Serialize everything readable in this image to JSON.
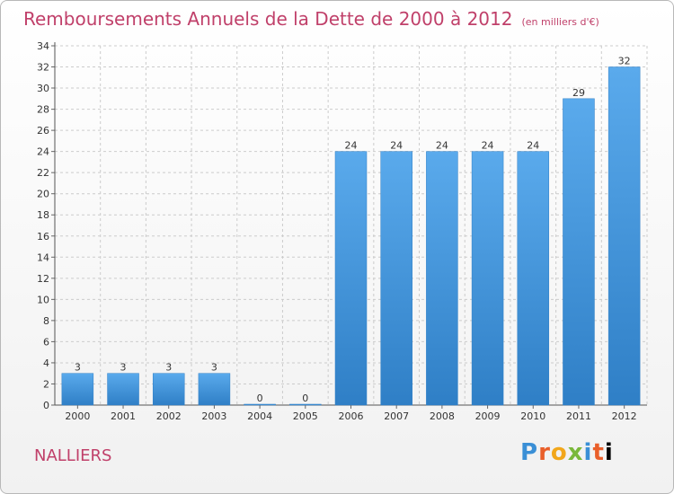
{
  "header": {
    "title": "Remboursements Annuels de la Dette de 2000 à 2012",
    "unit": "(en milliers d'€)"
  },
  "footer": {
    "commune": "NALLIERS",
    "logo_letters": [
      "P",
      "r",
      "o",
      "x",
      "i",
      "t",
      "i"
    ]
  },
  "colors": {
    "bar": "#3b8fd8",
    "bar_light": "#5aaaec",
    "title": "#c0406a",
    "grid": "#cccccc"
  },
  "chart_data": {
    "type": "bar",
    "title": "Remboursements Annuels de la Dette de 2000 à 2012",
    "subtitle": "(en milliers d'€)",
    "categories": [
      "2000",
      "2001",
      "2002",
      "2003",
      "2004",
      "2005",
      "2006",
      "2007",
      "2008",
      "2009",
      "2010",
      "2011",
      "2012"
    ],
    "values": [
      3,
      3,
      3,
      3,
      0,
      0,
      24,
      24,
      24,
      24,
      24,
      29,
      32
    ],
    "ylim": [
      0,
      34
    ],
    "yticks": [
      0,
      2,
      4,
      6,
      8,
      10,
      12,
      14,
      16,
      18,
      20,
      22,
      24,
      26,
      28,
      30,
      32,
      34
    ],
    "grid": true,
    "xlabel": "",
    "ylabel": ""
  }
}
